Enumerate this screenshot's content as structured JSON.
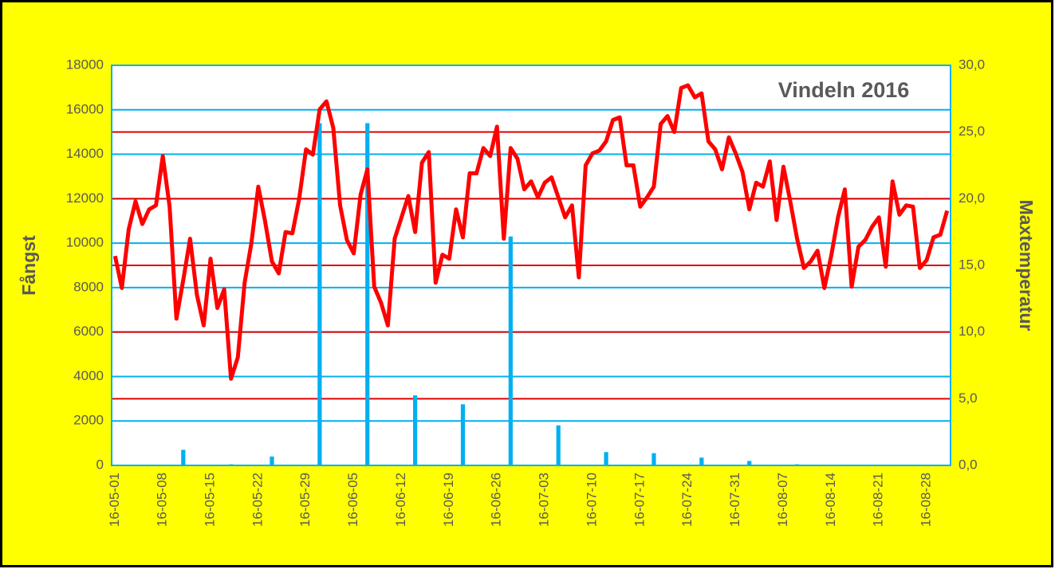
{
  "chart_data": {
    "type": "bar",
    "title": "Vindeln 2016",
    "y_label": "Fångst",
    "y2_label": "Maxtemperatur",
    "categories": [
      "16-05-01",
      null,
      null,
      null,
      null,
      null,
      null,
      "16-05-08",
      null,
      null,
      null,
      null,
      null,
      null,
      "16-05-15",
      null,
      null,
      null,
      null,
      null,
      null,
      "16-05-22",
      null,
      null,
      null,
      null,
      null,
      null,
      "16-05-29",
      null,
      null,
      null,
      null,
      null,
      null,
      "16-06-05",
      null,
      null,
      null,
      null,
      null,
      null,
      "16-06-12",
      null,
      null,
      null,
      null,
      null,
      null,
      "16-06-19",
      null,
      null,
      null,
      null,
      null,
      null,
      "16-06-26",
      null,
      null,
      null,
      null,
      null,
      null,
      "16-07-03",
      null,
      null,
      null,
      null,
      null,
      null,
      "16-07-10",
      null,
      null,
      null,
      null,
      null,
      null,
      "16-07-17",
      null,
      null,
      null,
      null,
      null,
      null,
      "16-07-24",
      null,
      null,
      null,
      null,
      null,
      null,
      "16-07-31",
      null,
      null,
      null,
      null,
      null,
      null,
      "16-08-07",
      null,
      null,
      null,
      null,
      null,
      null,
      "16-08-14",
      null,
      null,
      null,
      null,
      null,
      null,
      "16-08-21",
      null,
      null,
      null,
      null,
      null,
      null,
      "16-08-28",
      null,
      null,
      null
    ],
    "series": [
      {
        "type": "bar",
        "color": "#00b0f0",
        "values": [
          null,
          null,
          null,
          null,
          null,
          null,
          null,
          null,
          null,
          null,
          700,
          null,
          null,
          null,
          null,
          null,
          null,
          50,
          null,
          null,
          null,
          null,
          null,
          400,
          null,
          null,
          null,
          null,
          null,
          null,
          15400,
          null,
          null,
          null,
          null,
          null,
          null,
          15400,
          null,
          null,
          null,
          null,
          null,
          null,
          3150,
          null,
          null,
          null,
          null,
          null,
          null,
          2750,
          null,
          null,
          null,
          null,
          null,
          null,
          10300,
          null,
          null,
          null,
          null,
          null,
          null,
          1800,
          null,
          null,
          null,
          null,
          null,
          null,
          600,
          null,
          null,
          null,
          null,
          null,
          null,
          550,
          null,
          null,
          null,
          null,
          null,
          null,
          350,
          null,
          null,
          null,
          null,
          null,
          null,
          200,
          null,
          null,
          null,
          null,
          null,
          null,
          50,
          null,
          null,
          null,
          null,
          null,
          null,
          null,
          null,
          null,
          null,
          null,
          null,
          null,
          null,
          null,
          null,
          null,
          null,
          null,
          null,
          null,
          null
        ]
      },
      {
        "type": "line",
        "axis": "y2",
        "color": "#ff0000",
        "values": [
          15.7,
          13.3,
          17.7,
          19.8,
          18.1,
          19.2,
          19.5,
          23.2,
          19.4,
          11.0,
          13.9,
          17.0,
          12.8,
          10.5,
          15.5,
          11.8,
          13.2,
          6.5,
          8.1,
          13.7,
          16.7,
          20.9,
          18.3,
          15.3,
          14.4,
          17.5,
          17.4,
          20.0,
          23.7,
          23.3,
          26.7,
          27.3,
          25.3,
          19.5,
          16.9,
          15.9,
          20.3,
          22.2,
          13.4,
          12.2,
          10.5,
          17.0,
          18.6,
          20.2,
          17.5,
          22.7,
          23.5,
          13.7,
          15.8,
          15.5,
          19.2,
          17.1,
          21.9,
          21.9,
          23.8,
          23.2,
          25.4,
          17.0,
          23.8,
          23.0,
          20.7,
          21.3,
          20.1,
          21.2,
          21.6,
          20.1,
          18.6,
          19.5,
          14.1,
          22.5,
          23.4,
          23.6,
          24.3,
          25.9,
          26.1,
          22.5,
          22.5,
          19.4,
          20.1,
          20.9,
          25.6,
          26.2,
          25.0,
          28.3,
          28.5,
          27.6,
          27.9,
          24.3,
          23.7,
          22.2,
          24.6,
          23.4,
          22.0,
          19.2,
          21.2,
          20.9,
          22.8,
          18.4,
          22.4,
          19.8,
          17.0,
          14.8,
          15.3,
          16.1,
          13.3,
          15.7,
          18.6,
          20.7,
          13.4,
          16.4,
          16.9,
          17.9,
          18.6,
          14.9,
          21.3,
          18.8,
          19.5,
          19.4,
          14.8,
          15.4,
          17.1,
          17.3,
          19.1
        ]
      }
    ],
    "ylim": [
      0,
      18000
    ],
    "yticks": [
      0,
      2000,
      4000,
      6000,
      8000,
      10000,
      12000,
      14000,
      16000,
      18000
    ],
    "y2lim": [
      0,
      30
    ],
    "y2ticks": [
      {
        "value": 0,
        "label": "0,0"
      },
      {
        "value": 5,
        "label": "5,0"
      },
      {
        "value": 10,
        "label": "10,0"
      },
      {
        "value": 15,
        "label": "15,0"
      },
      {
        "value": 20,
        "label": "20,0"
      },
      {
        "value": 25,
        "label": "25,0"
      },
      {
        "value": 30,
        "label": "30,0"
      }
    ],
    "grid": true,
    "grid_color": "#00b0f0",
    "grid2_color": "#e00000",
    "background": "#ffff00"
  }
}
